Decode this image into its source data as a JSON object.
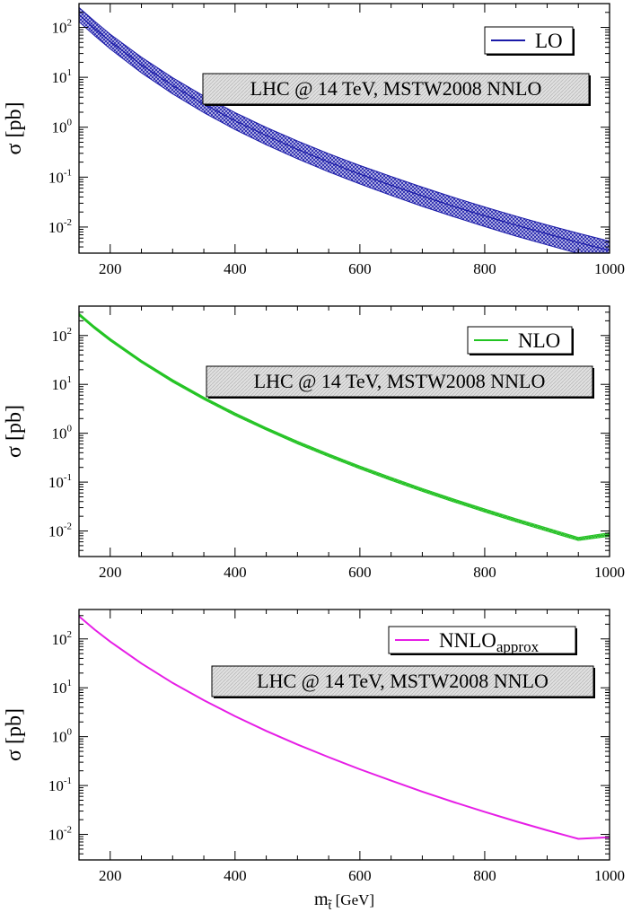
{
  "chart_data": [
    {
      "type": "line",
      "xlabel": "",
      "ylabel": "σ [pb]",
      "xlim": [
        150,
        1000
      ],
      "ylim": [
        0.003,
        300
      ],
      "yscale": "log",
      "xticks": [
        200,
        400,
        600,
        800,
        1000
      ],
      "yticks": [
        {
          "base": "10",
          "exp": "-2",
          "value": 0.01
        },
        {
          "base": "10",
          "exp": "-1",
          "value": 0.1
        },
        {
          "base": "10",
          "exp": "0",
          "value": 1
        },
        {
          "base": "10",
          "exp": "1",
          "value": 10
        },
        {
          "base": "10",
          "exp": "2",
          "value": 100
        }
      ],
      "annotation": "LHC @ 14 TeV, MSTW2008 NNLO",
      "legend": {
        "position": "top-right",
        "label": "LO",
        "sub": ""
      },
      "color": "#1a1aa8",
      "band": true,
      "series": [
        {
          "name": "LO",
          "x": [
            150,
            175,
            200,
            250,
            300,
            350,
            400,
            450,
            500,
            550,
            600,
            650,
            700,
            750,
            800,
            850,
            900,
            950,
            1000
          ],
          "y": [
            180,
            95,
            52,
            17.8,
            6.8,
            2.9,
            1.35,
            0.68,
            0.36,
            0.2,
            0.115,
            0.069,
            0.042,
            0.026,
            0.0167,
            0.0109,
            0.0073,
            0.0049,
            0.0034
          ],
          "y_low": [
            130,
            68,
            37,
            12.3,
            4.65,
            1.96,
            0.9,
            0.445,
            0.233,
            0.128,
            0.073,
            0.043,
            0.026,
            0.0161,
            0.0102,
            0.0066,
            0.0044,
            0.00295,
            0.002
          ],
          "y_high": [
            250,
            133,
            73,
            25.3,
            9.8,
            4.2,
            1.97,
            0.99,
            0.53,
            0.295,
            0.171,
            0.103,
            0.063,
            0.0392,
            0.0252,
            0.0165,
            0.011,
            0.0075,
            0.0052
          ]
        }
      ]
    },
    {
      "type": "line",
      "xlabel": "",
      "ylabel": "σ [pb]",
      "xlim": [
        150,
        1000
      ],
      "ylim": [
        0.003,
        400
      ],
      "yscale": "log",
      "xticks": [
        200,
        400,
        600,
        800,
        1000
      ],
      "yticks": [
        {
          "base": "10",
          "exp": "-2",
          "value": 0.01
        },
        {
          "base": "10",
          "exp": "-1",
          "value": 0.1
        },
        {
          "base": "10",
          "exp": "0",
          "value": 1
        },
        {
          "base": "10",
          "exp": "1",
          "value": 10
        },
        {
          "base": "10",
          "exp": "2",
          "value": 100
        }
      ],
      "annotation": "LHC @ 14 TeV, MSTW2008 NNLO",
      "legend": {
        "position": "top-right",
        "label": "NLO",
        "sub": ""
      },
      "color": "#22c422",
      "band": true,
      "series": [
        {
          "name": "NLO",
          "x": [
            150,
            175,
            200,
            250,
            300,
            350,
            400,
            450,
            500,
            550,
            600,
            650,
            700,
            750,
            800,
            850,
            900,
            950,
            1000
          ],
          "y": [
            270,
            145,
            82,
            29.5,
            11.8,
            5.2,
            2.45,
            1.23,
            0.645,
            0.355,
            0.2,
            0.117,
            0.0695,
            0.0423,
            0.0263,
            0.0166,
            0.0107,
            0.0069,
            0.0085
          ],
          "y_low": [
            255,
            137,
            77.5,
            27.9,
            11.1,
            4.9,
            2.31,
            1.16,
            0.605,
            0.333,
            0.187,
            0.109,
            0.0648,
            0.0394,
            0.0244,
            0.0154,
            0.0099,
            0.0064,
            0.0078
          ],
          "y_high": [
            285,
            153,
            86.5,
            31.1,
            12.5,
            5.5,
            2.6,
            1.3,
            0.685,
            0.377,
            0.213,
            0.125,
            0.0742,
            0.0452,
            0.0282,
            0.0178,
            0.0115,
            0.0074,
            0.0092
          ]
        }
      ]
    },
    {
      "type": "line",
      "xlabel": "m~t [GeV]",
      "xlabel_main": "m",
      "xlabel_sub": "t̃",
      "xlabel_unit": " [GeV]",
      "ylabel": "σ [pb]",
      "xlim": [
        150,
        1000
      ],
      "ylim": [
        0.003,
        400
      ],
      "yscale": "log",
      "xticks": [
        200,
        400,
        600,
        800,
        1000
      ],
      "yticks": [
        {
          "base": "10",
          "exp": "-2",
          "value": 0.01
        },
        {
          "base": "10",
          "exp": "-1",
          "value": 0.1
        },
        {
          "base": "10",
          "exp": "0",
          "value": 1
        },
        {
          "base": "10",
          "exp": "1",
          "value": 10
        },
        {
          "base": "10",
          "exp": "2",
          "value": 100
        }
      ],
      "annotation": "LHC @ 14 TeV, MSTW2008 NNLO",
      "legend": {
        "position": "top-right",
        "label": "NNLO",
        "sub": "approx"
      },
      "color": "#e61ee6",
      "band": false,
      "series": [
        {
          "name": "NNLO_approx",
          "x": [
            150,
            175,
            200,
            250,
            300,
            350,
            400,
            450,
            500,
            550,
            600,
            650,
            700,
            750,
            800,
            850,
            900,
            950,
            1000
          ],
          "y": [
            290,
            155,
            88,
            31.5,
            12.6,
            5.55,
            2.62,
            1.31,
            0.69,
            0.38,
            0.215,
            0.126,
            0.075,
            0.046,
            0.029,
            0.0185,
            0.0121,
            0.0081,
            0.0087
          ]
        }
      ]
    }
  ]
}
